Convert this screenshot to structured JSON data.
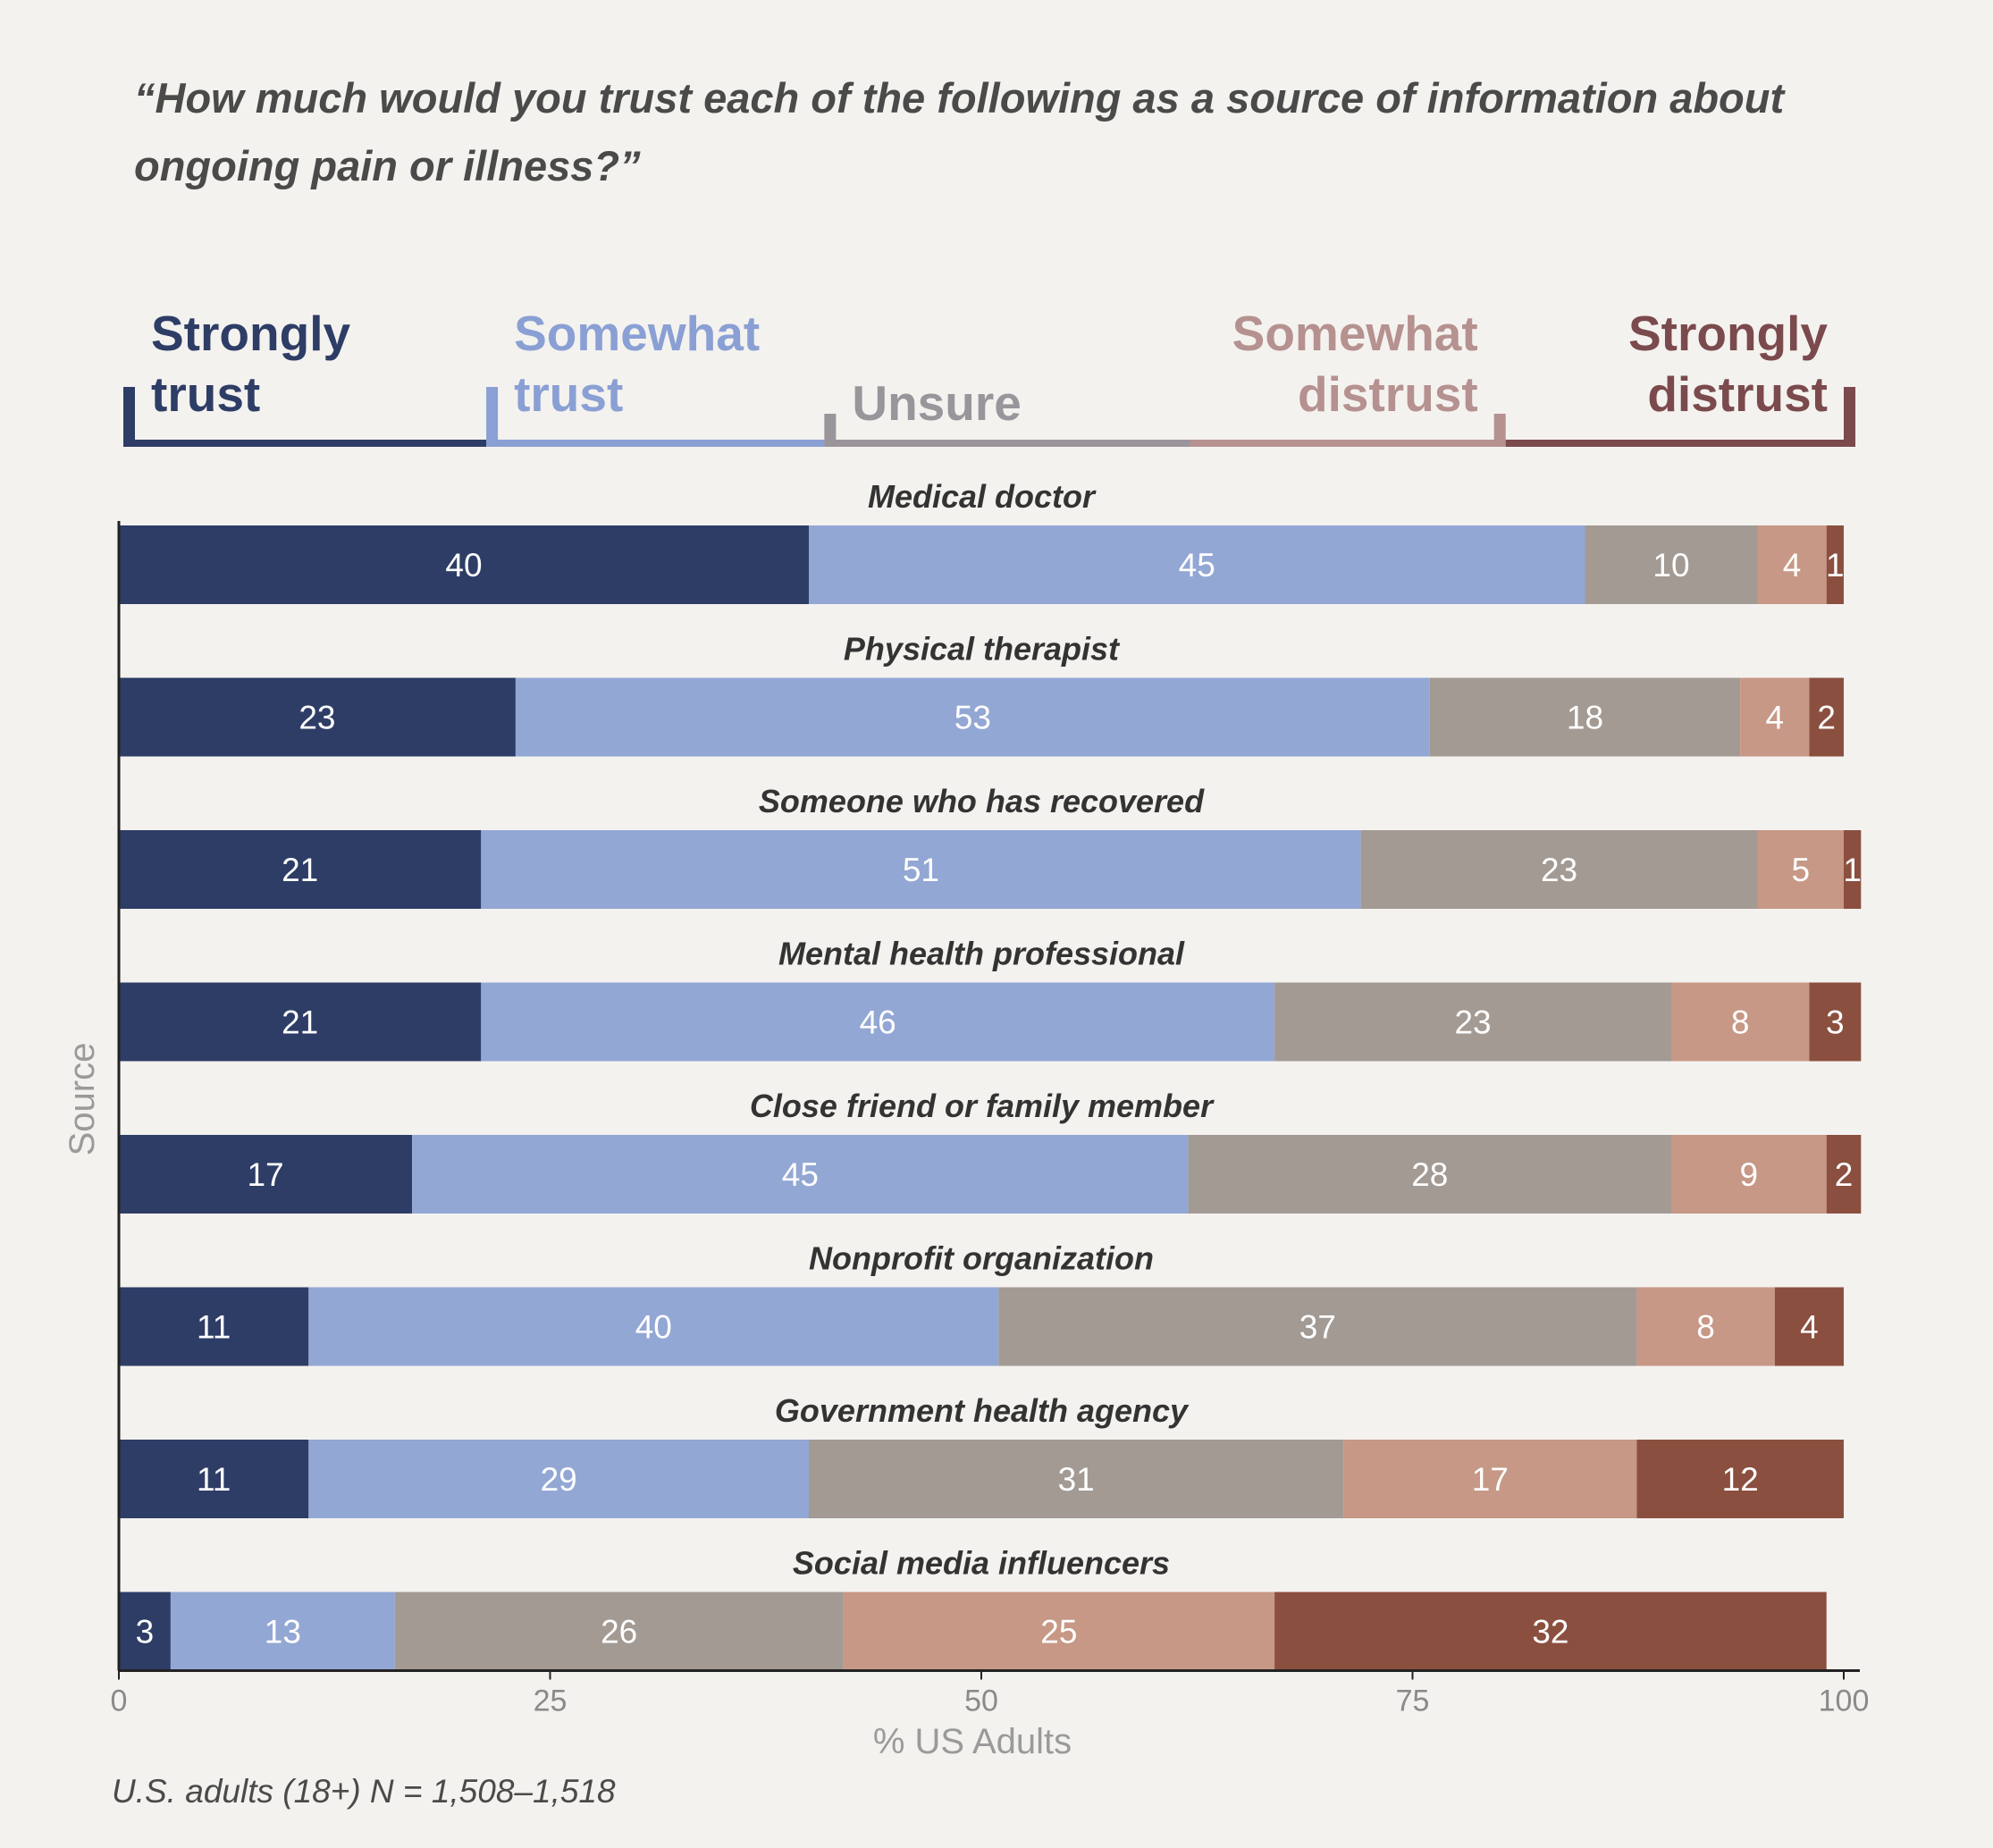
{
  "chart_data": {
    "type": "bar",
    "orientation": "horizontal-stacked",
    "title_lines": [
      "“How much would you trust each of the following as a source of information about",
      "ongoing pain or illness?”"
    ],
    "categories": [
      "Medical doctor",
      "Physical therapist",
      "Someone who has recovered",
      "Mental health professional",
      "Close friend or family member",
      "Nonprofit organization",
      "Government health agency",
      "Social media influencers"
    ],
    "series": [
      {
        "name_lines": [
          "Strongly",
          "trust"
        ],
        "color": "#2e3d66",
        "legend_color": "#2e3d66",
        "values": [
          40,
          23,
          21,
          21,
          17,
          11,
          11,
          3
        ]
      },
      {
        "name_lines": [
          "Somewhat",
          "trust"
        ],
        "color": "#93a7d4",
        "legend_color": "#8aa0d4",
        "values": [
          45,
          53,
          51,
          46,
          45,
          40,
          29,
          13
        ]
      },
      {
        "name_lines": [
          "Unsure"
        ],
        "color": "#a39a94",
        "legend_color": "#9a959b",
        "values": [
          10,
          18,
          23,
          23,
          28,
          37,
          31,
          26
        ]
      },
      {
        "name_lines": [
          "Somewhat",
          "distrust"
        ],
        "color": "#c79886",
        "legend_color": "#b59190",
        "values": [
          4,
          4,
          5,
          8,
          9,
          8,
          17,
          25
        ]
      },
      {
        "name_lines": [
          "Strongly",
          "distrust"
        ],
        "color": "#8b4f3f",
        "legend_color": "#7b4a4d",
        "values": [
          1,
          2,
          1,
          3,
          2,
          4,
          12,
          32
        ]
      }
    ],
    "xlabel": "% US Adults",
    "ylabel": "Source",
    "xlim": [
      0,
      100
    ],
    "xticks": [
      0,
      25,
      50,
      75,
      100
    ],
    "grid": false,
    "legend_position": "top"
  },
  "note": "U.S. adults (18+) N = 1,508–1,518"
}
